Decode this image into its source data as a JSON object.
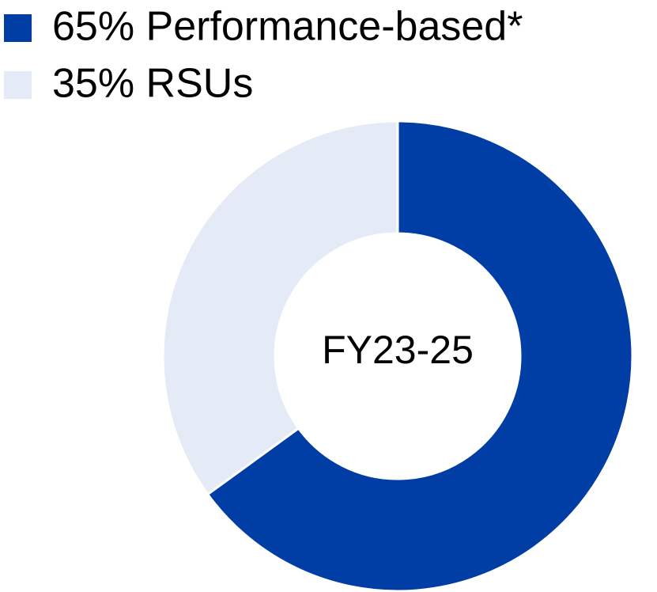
{
  "chart_data": {
    "type": "donut",
    "categories": [
      "65% Performance-based*",
      "35% RSUs"
    ],
    "values": [
      65,
      35
    ],
    "colors": [
      "#003da5",
      "#e4eaf6"
    ],
    "center_label": "FY23-25"
  }
}
